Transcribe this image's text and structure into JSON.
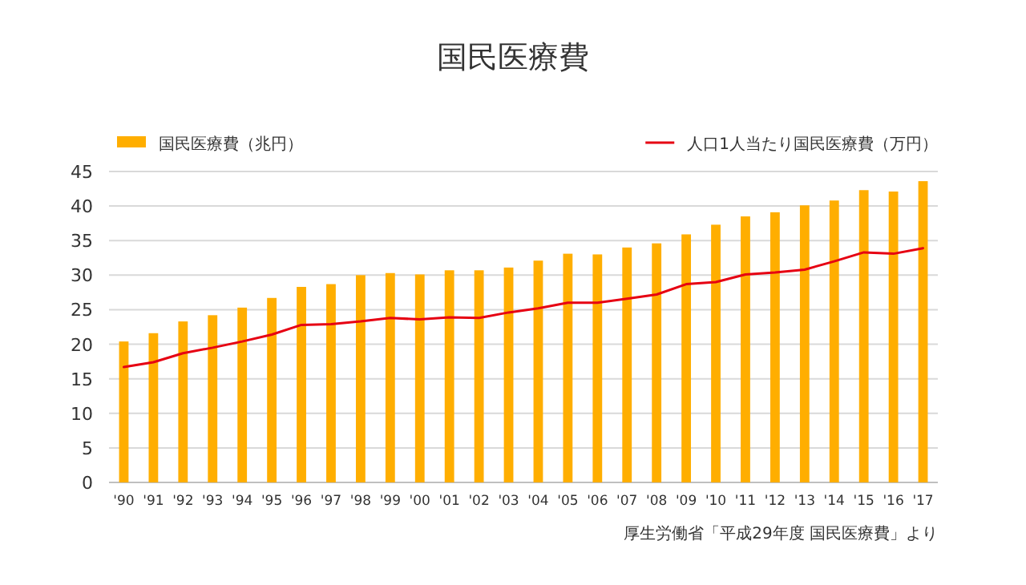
{
  "chart_data": {
    "type": "bar",
    "title": "国民医療費",
    "categories": [
      "'90",
      "'91",
      "'92",
      "'93",
      "'94",
      "'95",
      "'96",
      "'97",
      "'98",
      "'99",
      "'00",
      "'01",
      "'02",
      "'03",
      "'04",
      "'05",
      "'06",
      "'07",
      "'08",
      "'09",
      "'10",
      "'11",
      "'12",
      "'13",
      "'14",
      "'15",
      "'16",
      "'17"
    ],
    "series": [
      {
        "name": "国民医療費（兆円）",
        "color": "#ffae00",
        "values": [
          20.4,
          21.6,
          23.3,
          24.2,
          25.3,
          26.7,
          28.3,
          28.7,
          30.0,
          30.3,
          30.1,
          30.7,
          30.7,
          31.1,
          32.1,
          33.1,
          33.0,
          34.0,
          34.6,
          35.9,
          37.3,
          38.5,
          39.1,
          40.1,
          40.8,
          42.3,
          42.1,
          43.6
        ]
      },
      {
        "name": "人口1人当たり国民医療費（万円）",
        "type": "line",
        "color": "#e60012",
        "values": [
          16.7,
          17.4,
          18.7,
          19.5,
          20.4,
          21.4,
          22.8,
          22.9,
          23.3,
          23.8,
          23.6,
          23.9,
          23.8,
          24.6,
          25.2,
          26.0,
          26.0,
          26.6,
          27.2,
          28.7,
          29.0,
          30.1,
          30.4,
          30.8,
          32.0,
          33.3,
          33.1,
          33.9
        ]
      }
    ],
    "ylim": [
      0,
      45
    ],
    "yticks": [
      0,
      5,
      10,
      15,
      20,
      25,
      30,
      35,
      40,
      45
    ],
    "grid": "y",
    "legend": "top",
    "annotations": [
      "厚生労働省「平成29年度 国民医療費」より"
    ]
  }
}
